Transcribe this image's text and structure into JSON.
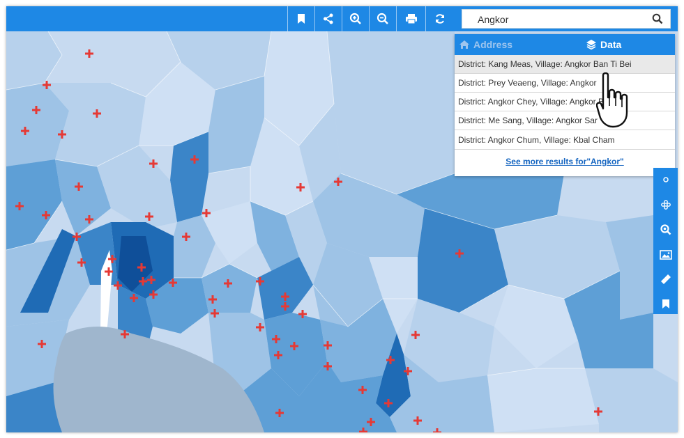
{
  "toolbar": {
    "buttons": [
      "bookmark-icon",
      "share-icon",
      "zoom-in-icon",
      "zoom-out-icon",
      "print-icon",
      "refresh-icon"
    ]
  },
  "search": {
    "value": "Angkor",
    "icon": "search-icon"
  },
  "results": {
    "tabs": {
      "address": "Address",
      "data": "Data",
      "active": "data"
    },
    "items": [
      "District: Kang Meas, Village: Angkor Ban Ti Bei",
      "District: Prey Veaeng, Village: Angkor",
      "District: Angkor Chey, Village: Angkor Bo",
      "District: Me Sang, Village: Angkor Sar",
      "District: Angkor Chum, Village: Kbal Cham"
    ],
    "see_more": "See more results for\"Angkor\""
  },
  "sidebar": {
    "buttons": [
      "layers-icon",
      "cluster-icon",
      "zoom-to-icon",
      "image-icon",
      "ruler-icon",
      "bookmark-icon"
    ]
  },
  "map": {
    "choropleth_colors": [
      "#cfe0f4",
      "#b7d1ec",
      "#9ec3e6",
      "#7fb2df",
      "#5e9fd6",
      "#3b85c8",
      "#1f6bb5",
      "#0f4f99"
    ],
    "water_color": "#9fb6cd",
    "marker_symbol": "+",
    "marker_color": "#e53935"
  },
  "colors": {
    "accent": "#1e88e5",
    "link": "#1565c0"
  }
}
